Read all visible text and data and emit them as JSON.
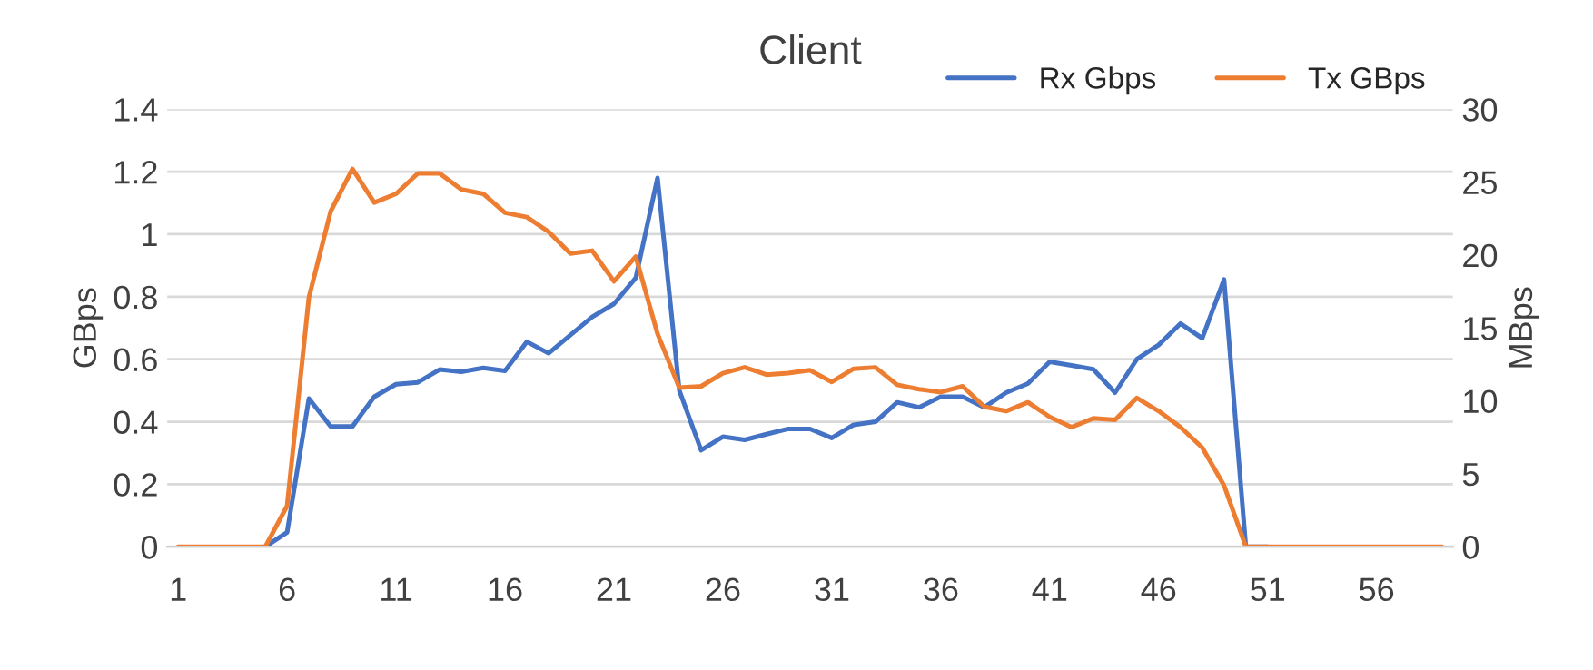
{
  "chart_data": {
    "type": "line",
    "title": "Client",
    "ylabel": "GBps",
    "y2label": "MBps",
    "categories": [
      "1",
      null,
      null,
      null,
      null,
      "6",
      null,
      null,
      null,
      null,
      "11",
      null,
      null,
      null,
      null,
      "16",
      null,
      null,
      null,
      null,
      "21",
      null,
      null,
      null,
      null,
      "26",
      null,
      null,
      null,
      null,
      "31",
      null,
      null,
      null,
      null,
      "36",
      null,
      null,
      null,
      null,
      "41",
      null,
      null,
      null,
      null,
      "46",
      null,
      null,
      null,
      null,
      "51",
      null,
      null,
      null,
      null,
      "56",
      null,
      null,
      null
    ],
    "series": [
      {
        "name": "Rx Gbps",
        "color": "#4472c4",
        "values": [
          null,
          null,
          null,
          null,
          0,
          0.046,
          0.474,
          0.385,
          0.385,
          0.48,
          0.52,
          0.526,
          0.567,
          0.56,
          0.572,
          0.563,
          0.656,
          0.619,
          0.677,
          0.735,
          0.777,
          0.86,
          1.18,
          0.5,
          0.309,
          0.352,
          0.342,
          0.36,
          0.377,
          0.377,
          0.348,
          0.39,
          0.4,
          0.462,
          0.446,
          0.48,
          0.48,
          0.446,
          0.493,
          0.522,
          0.592,
          0.58,
          0.568,
          0.493,
          0.6,
          0.646,
          0.714,
          0.667,
          0.855,
          0,
          0,
          null,
          null,
          null,
          null,
          null,
          null,
          null,
          null
        ]
      },
      {
        "name": "Tx GBps",
        "color": "#ed7d31",
        "axis": "y2",
        "values": [
          0,
          0,
          0,
          0,
          0,
          2.8,
          17.1,
          23.0,
          25.9,
          23.6,
          24.2,
          25.6,
          25.6,
          24.5,
          24.2,
          22.9,
          22.6,
          21.6,
          20.1,
          20.3,
          18.2,
          19.9,
          14.6,
          10.9,
          11.0,
          11.9,
          12.3,
          11.8,
          11.9,
          12.1,
          11.3,
          12.2,
          12.3,
          11.1,
          10.8,
          10.6,
          11.0,
          9.6,
          9.3,
          9.9,
          8.9,
          8.2,
          8.8,
          8.7,
          10.2,
          9.3,
          8.2,
          6.8,
          4.2,
          0,
          0,
          0,
          0,
          0,
          0,
          0,
          0,
          0,
          0
        ]
      }
    ],
    "ylim": [
      0,
      1.4
    ],
    "yticks": [
      0,
      0.2,
      0.4,
      0.6,
      0.8,
      1,
      1.2,
      1.4
    ],
    "y2lim": [
      0,
      30
    ],
    "y2ticks": [
      0,
      5,
      10,
      15,
      20,
      25,
      30
    ],
    "grid": "y",
    "legend": "top right",
    "marker": "none",
    "line_style": "solid"
  }
}
